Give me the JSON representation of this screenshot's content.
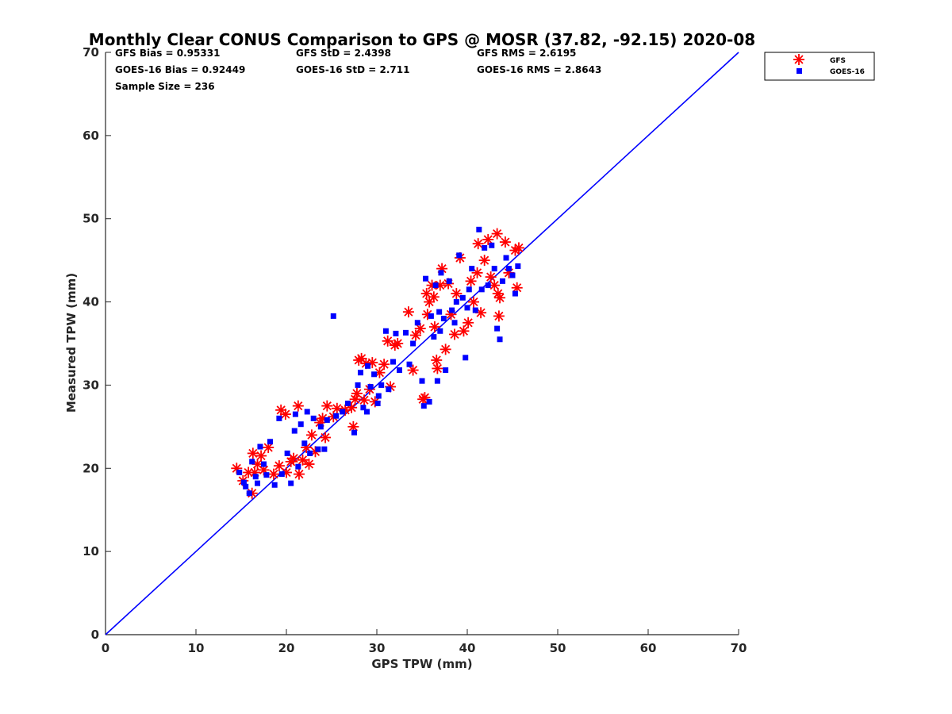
{
  "chart_data": {
    "type": "scatter",
    "title": "Monthly Clear CONUS Comparison to GPS @ MOSR (37.82, -92.15) 2020-08",
    "xlabel": "GPS TPW (mm)",
    "ylabel": "Measured TPW (mm)",
    "xlim": [
      0,
      70
    ],
    "ylim": [
      0,
      70
    ],
    "xticks": [
      "0",
      "10",
      "20",
      "30",
      "40",
      "50",
      "60",
      "70"
    ],
    "yticks": [
      "0",
      "10",
      "20",
      "30",
      "40",
      "50",
      "60",
      "70"
    ],
    "grid": false,
    "legend_position": "top-right (outside)",
    "stats": {
      "gfs_bias": "GFS Bias = 0.95331",
      "gfs_std": "GFS StD = 2.4398",
      "gfs_rms": "GFS RMS = 2.6195",
      "goes_bias": "GOES-16 Bias = 0.92449",
      "goes_std": "GOES-16 StD = 2.711",
      "goes_rms": "GOES-16 RMS = 2.8643",
      "sample_size": "Sample Size = 236"
    },
    "reference_line": {
      "from": [
        0,
        0
      ],
      "to": [
        70,
        70
      ],
      "color": "#0000ff"
    },
    "series": [
      {
        "name": "GFS",
        "marker": "asterisk",
        "color": "#ff0000",
        "points": [
          [
            14.5,
            20
          ],
          [
            15.2,
            18.5
          ],
          [
            15.8,
            19.5
          ],
          [
            16.2,
            17
          ],
          [
            16.3,
            21.8
          ],
          [
            16.8,
            20.5
          ],
          [
            17.2,
            21.5
          ],
          [
            17.5,
            19.8
          ],
          [
            18,
            22.5
          ],
          [
            18.6,
            19.3
          ],
          [
            19.4,
            27
          ],
          [
            19.9,
            26.5
          ],
          [
            20,
            19.5
          ],
          [
            20.5,
            20.8
          ],
          [
            20.8,
            21.2
          ],
          [
            21.3,
            27.5
          ],
          [
            21.4,
            19.3
          ],
          [
            21.8,
            21
          ],
          [
            22.2,
            22.5
          ],
          [
            22.5,
            20.5
          ],
          [
            22.8,
            24
          ],
          [
            23.2,
            22
          ],
          [
            23.7,
            25.5
          ],
          [
            24,
            26
          ],
          [
            24.3,
            23.7
          ],
          [
            24.5,
            27.5
          ],
          [
            25.2,
            26.2
          ],
          [
            25.6,
            27.2
          ],
          [
            26.5,
            27
          ],
          [
            27.2,
            27.3
          ],
          [
            27.4,
            25
          ],
          [
            27.6,
            28.3
          ],
          [
            27.8,
            29
          ],
          [
            28,
            33
          ],
          [
            28.3,
            33.2
          ],
          [
            28.6,
            28.2
          ],
          [
            28.8,
            32.6
          ],
          [
            29.2,
            29.5
          ],
          [
            29.5,
            32.7
          ],
          [
            29.8,
            28
          ],
          [
            30.3,
            31.5
          ],
          [
            30.8,
            32.5
          ],
          [
            31.2,
            35.3
          ],
          [
            31.5,
            29.8
          ],
          [
            32,
            34.8
          ],
          [
            32.3,
            35
          ],
          [
            33.5,
            38.8
          ],
          [
            34,
            31.8
          ],
          [
            34.3,
            36
          ],
          [
            35.1,
            28.3
          ],
          [
            35.3,
            28.5
          ],
          [
            35.5,
            41
          ],
          [
            35.6,
            38.5
          ],
          [
            35.8,
            40
          ],
          [
            36.1,
            42
          ],
          [
            36.4,
            37
          ],
          [
            36.6,
            33
          ],
          [
            36.7,
            32
          ],
          [
            37,
            42
          ],
          [
            37.2,
            44
          ],
          [
            37.6,
            34.3
          ],
          [
            37.9,
            42.2
          ],
          [
            38.2,
            38.5
          ],
          [
            38.6,
            36.1
          ],
          [
            38.8,
            41
          ],
          [
            39.2,
            45.3
          ],
          [
            39.6,
            36.5
          ],
          [
            40.1,
            37.5
          ],
          [
            40.4,
            42.5
          ],
          [
            40.7,
            40
          ],
          [
            41.1,
            43.5
          ],
          [
            41.2,
            47
          ],
          [
            41.5,
            38.7
          ],
          [
            41.9,
            45
          ],
          [
            42.3,
            47.5
          ],
          [
            42.6,
            43
          ],
          [
            43,
            42
          ],
          [
            43.3,
            48.2
          ],
          [
            43.4,
            41
          ],
          [
            43.5,
            38.3
          ],
          [
            43.6,
            40.5
          ],
          [
            44.2,
            47.2
          ],
          [
            44.6,
            43.5
          ],
          [
            45.3,
            46.2
          ],
          [
            45.5,
            41.7
          ],
          [
            45.7,
            46.5
          ],
          [
            19.2,
            20.3
          ],
          [
            16.5,
            19.5
          ],
          [
            34.8,
            36.8
          ],
          [
            36.3,
            40.6
          ]
        ]
      },
      {
        "name": "GOES-16",
        "marker": "square",
        "color": "#0000ff",
        "points": [
          [
            14.8,
            19.5
          ],
          [
            15.3,
            18.3
          ],
          [
            15.5,
            17.8
          ],
          [
            15.9,
            17
          ],
          [
            16.2,
            20.8
          ],
          [
            16.6,
            19
          ],
          [
            16.8,
            18.2
          ],
          [
            17.1,
            22.6
          ],
          [
            17.5,
            20.5
          ],
          [
            17.8,
            19.2
          ],
          [
            18.2,
            23.2
          ],
          [
            18.7,
            18
          ],
          [
            19.2,
            26
          ],
          [
            19.5,
            19.3
          ],
          [
            20.1,
            21.8
          ],
          [
            20.5,
            18.2
          ],
          [
            20.9,
            24.5
          ],
          [
            21,
            26.5
          ],
          [
            21.3,
            20.2
          ],
          [
            21.6,
            25.3
          ],
          [
            22,
            23
          ],
          [
            22.3,
            26.8
          ],
          [
            22.6,
            21.8
          ],
          [
            23,
            26
          ],
          [
            23.5,
            22.3
          ],
          [
            23.8,
            25
          ],
          [
            24.2,
            22.3
          ],
          [
            24.5,
            25.8
          ],
          [
            25.2,
            38.3
          ],
          [
            25.5,
            26.3
          ],
          [
            26.2,
            26.8
          ],
          [
            26.8,
            27.8
          ],
          [
            27.5,
            24.3
          ],
          [
            27.9,
            30
          ],
          [
            28.2,
            31.5
          ],
          [
            28.5,
            27.3
          ],
          [
            28.9,
            26.8
          ],
          [
            29.3,
            29.8
          ],
          [
            29.7,
            31.3
          ],
          [
            30.1,
            27.8
          ],
          [
            30.5,
            30
          ],
          [
            31,
            36.5
          ],
          [
            31.3,
            29.5
          ],
          [
            31.8,
            32.8
          ],
          [
            32.1,
            36.2
          ],
          [
            32.5,
            31.8
          ],
          [
            33.2,
            36.3
          ],
          [
            33.6,
            32.5
          ],
          [
            34,
            35
          ],
          [
            34.5,
            37.5
          ],
          [
            35,
            30.5
          ],
          [
            35.2,
            27.5
          ],
          [
            35.4,
            42.8
          ],
          [
            35.8,
            28
          ],
          [
            36,
            38.3
          ],
          [
            36.3,
            35.8
          ],
          [
            36.5,
            42
          ],
          [
            36.7,
            30.5
          ],
          [
            37.1,
            43.5
          ],
          [
            37.4,
            38
          ],
          [
            37.6,
            31.8
          ],
          [
            38,
            42.5
          ],
          [
            38.3,
            39
          ],
          [
            38.6,
            37.5
          ],
          [
            39.1,
            45.6
          ],
          [
            39.5,
            40.5
          ],
          [
            39.8,
            33.3
          ],
          [
            40.2,
            41.5
          ],
          [
            40.5,
            44
          ],
          [
            40.9,
            39
          ],
          [
            41.3,
            48.7
          ],
          [
            41.6,
            41.5
          ],
          [
            41.9,
            46.5
          ],
          [
            42.3,
            42
          ],
          [
            42.7,
            46.8
          ],
          [
            43,
            44
          ],
          [
            43.3,
            36.8
          ],
          [
            43.6,
            35.5
          ],
          [
            43.9,
            42.5
          ],
          [
            44.3,
            45.3
          ],
          [
            44.6,
            44
          ],
          [
            45,
            43.2
          ],
          [
            45.3,
            41
          ],
          [
            45.6,
            44.3
          ],
          [
            37,
            36.5
          ],
          [
            38.8,
            40
          ],
          [
            36.9,
            38.8
          ],
          [
            40,
            39.3
          ],
          [
            30.2,
            28.7
          ],
          [
            29,
            32.3
          ]
        ]
      }
    ]
  }
}
